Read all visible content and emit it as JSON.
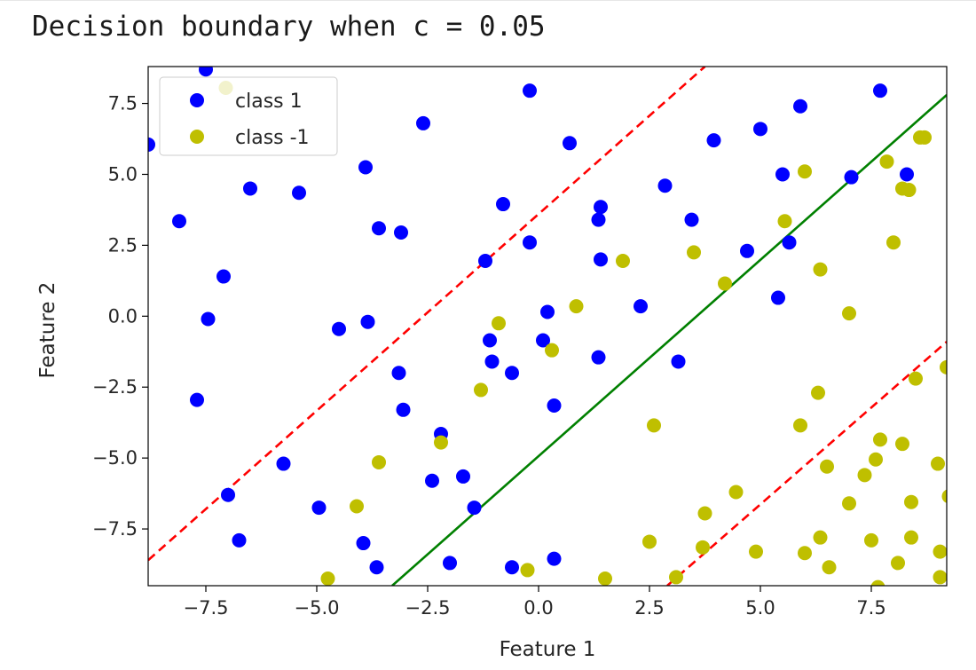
{
  "cell": {
    "title": "Decision boundary when c = 0.05"
  },
  "colors": {
    "class_pos": "#0000ff",
    "class_neg": "#bfbf00",
    "boundary": "#008000",
    "margin": "#ff0000"
  },
  "chart_data": {
    "type": "scatter",
    "xlabel": "Feature 1",
    "ylabel": "Feature 2",
    "xlim": [
      -8.8,
      9.2
    ],
    "ylim": [
      -9.5,
      8.8
    ],
    "xticks": [
      -7.5,
      -5.0,
      -2.5,
      0.0,
      2.5,
      5.0,
      7.5
    ],
    "yticks": [
      -7.5,
      -5.0,
      -2.5,
      0.0,
      2.5,
      5.0,
      7.5
    ],
    "xtick_labels": [
      "−7.5",
      "−5.0",
      "−2.5",
      "0.0",
      "2.5",
      "5.0",
      "7.5"
    ],
    "ytick_labels": [
      "−7.5",
      "−5.0",
      "−2.5",
      "0.0",
      "2.5",
      "5.0",
      "7.5"
    ],
    "legend_position": "top-left",
    "grid": false,
    "series": [
      {
        "name": "class 1",
        "color": "#0000ff",
        "points": [
          [
            -7.5,
            8.7
          ],
          [
            -0.2,
            7.95
          ],
          [
            7.7,
            7.95
          ],
          [
            5.9,
            7.4
          ],
          [
            -2.6,
            6.8
          ],
          [
            5.0,
            6.6
          ],
          [
            0.7,
            6.1
          ],
          [
            3.95,
            6.2
          ],
          [
            -8.8,
            6.05
          ],
          [
            -3.9,
            5.25
          ],
          [
            5.5,
            5.0
          ],
          [
            7.05,
            4.9
          ],
          [
            8.3,
            5.0
          ],
          [
            -6.5,
            4.5
          ],
          [
            -5.4,
            4.35
          ],
          [
            2.85,
            4.6
          ],
          [
            -0.8,
            3.95
          ],
          [
            1.4,
            3.85
          ],
          [
            1.35,
            3.4
          ],
          [
            3.45,
            3.4
          ],
          [
            -8.1,
            3.35
          ],
          [
            -3.6,
            3.1
          ],
          [
            -3.1,
            2.95
          ],
          [
            -0.2,
            2.6
          ],
          [
            5.65,
            2.6
          ],
          [
            4.7,
            2.3
          ],
          [
            1.4,
            2.0
          ],
          [
            -1.2,
            1.95
          ],
          [
            -7.1,
            1.4
          ],
          [
            5.4,
            0.65
          ],
          [
            2.3,
            0.35
          ],
          [
            0.2,
            0.15
          ],
          [
            -7.45,
            -0.1
          ],
          [
            -3.85,
            -0.2
          ],
          [
            -4.5,
            -0.45
          ],
          [
            -1.1,
            -0.85
          ],
          [
            0.1,
            -0.85
          ],
          [
            -1.05,
            -1.6
          ],
          [
            1.35,
            -1.45
          ],
          [
            3.15,
            -1.6
          ],
          [
            -0.6,
            -2.0
          ],
          [
            -3.15,
            -2.0
          ],
          [
            -7.7,
            -2.95
          ],
          [
            -3.05,
            -3.3
          ],
          [
            0.35,
            -3.15
          ],
          [
            -2.2,
            -4.15
          ],
          [
            -5.75,
            -5.2
          ],
          [
            -2.4,
            -5.8
          ],
          [
            -1.7,
            -5.65
          ],
          [
            -1.45,
            -6.75
          ],
          [
            -7.0,
            -6.3
          ],
          [
            -4.95,
            -6.75
          ],
          [
            -6.75,
            -7.9
          ],
          [
            -3.95,
            -8.0
          ],
          [
            -3.65,
            -8.85
          ],
          [
            -2.0,
            -8.7
          ],
          [
            -0.6,
            -8.85
          ],
          [
            0.35,
            -8.55
          ]
        ]
      },
      {
        "name": "class -1",
        "color": "#bfbf00",
        "points": [
          [
            -7.05,
            8.05
          ],
          [
            8.6,
            6.3
          ],
          [
            8.7,
            6.3
          ],
          [
            7.85,
            5.45
          ],
          [
            6.0,
            5.1
          ],
          [
            8.2,
            4.5
          ],
          [
            8.35,
            4.45
          ],
          [
            5.55,
            3.35
          ],
          [
            8.0,
            2.6
          ],
          [
            1.9,
            1.95
          ],
          [
            3.5,
            2.25
          ],
          [
            6.35,
            1.65
          ],
          [
            4.2,
            1.15
          ],
          [
            7.0,
            0.1
          ],
          [
            0.85,
            0.35
          ],
          [
            -0.9,
            -0.25
          ],
          [
            0.3,
            -1.2
          ],
          [
            -1.3,
            -2.6
          ],
          [
            6.3,
            -2.7
          ],
          [
            8.5,
            -2.2
          ],
          [
            9.2,
            -1.8
          ],
          [
            2.6,
            -3.85
          ],
          [
            5.9,
            -3.85
          ],
          [
            -2.2,
            -4.45
          ],
          [
            7.7,
            -4.35
          ],
          [
            8.2,
            -4.5
          ],
          [
            -3.6,
            -5.15
          ],
          [
            7.6,
            -5.05
          ],
          [
            6.5,
            -5.3
          ],
          [
            7.35,
            -5.6
          ],
          [
            9.0,
            -5.2
          ],
          [
            4.45,
            -6.2
          ],
          [
            9.25,
            -6.35
          ],
          [
            -4.1,
            -6.7
          ],
          [
            7.0,
            -6.6
          ],
          [
            8.4,
            -6.55
          ],
          [
            3.75,
            -6.95
          ],
          [
            2.5,
            -7.95
          ],
          [
            3.7,
            -8.15
          ],
          [
            4.9,
            -8.3
          ],
          [
            6.35,
            -7.8
          ],
          [
            7.5,
            -7.9
          ],
          [
            8.4,
            -7.8
          ],
          [
            6.0,
            -8.35
          ],
          [
            8.1,
            -8.7
          ],
          [
            9.05,
            -8.3
          ],
          [
            -4.75,
            -9.25
          ],
          [
            -0.25,
            -8.95
          ],
          [
            1.5,
            -9.25
          ],
          [
            3.1,
            -9.2
          ],
          [
            6.55,
            -8.85
          ],
          [
            7.65,
            -9.55
          ],
          [
            9.05,
            -9.2
          ]
        ]
      }
    ],
    "lines": [
      {
        "role": "boundary",
        "style": "solid",
        "color": "#008000",
        "points": [
          [
            -3.3,
            -9.5
          ],
          [
            9.2,
            7.8
          ]
        ]
      },
      {
        "role": "margin",
        "style": "dashed",
        "color": "#ff0000",
        "points": [
          [
            -8.8,
            -8.6
          ],
          [
            3.75,
            8.8
          ]
        ]
      },
      {
        "role": "margin",
        "style": "dashed",
        "color": "#ff0000",
        "points": [
          [
            2.9,
            -9.5
          ],
          [
            9.2,
            -0.9
          ]
        ]
      }
    ]
  }
}
